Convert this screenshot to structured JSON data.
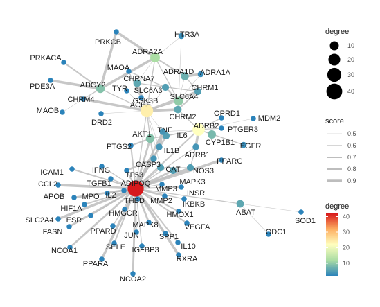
{
  "legends": {
    "degree_size": {
      "title": "degree",
      "breaks": [
        {
          "label": "10",
          "value": 10
        },
        {
          "label": "20",
          "value": 20
        },
        {
          "label": "30",
          "value": 30
        },
        {
          "label": "40",
          "value": 40
        }
      ]
    },
    "score": {
      "title": "score",
      "breaks": [
        {
          "label": "0.5",
          "value": 0.5
        },
        {
          "label": "0.6",
          "value": 0.6
        },
        {
          "label": "0.7",
          "value": 0.7
        },
        {
          "label": "0.8",
          "value": 0.8
        },
        {
          "label": "0.9",
          "value": 0.9
        }
      ]
    },
    "degree_color": {
      "title": "degree",
      "ticks": [
        {
          "label": "40",
          "value": 40
        },
        {
          "label": "30",
          "value": 30
        },
        {
          "label": "20",
          "value": 20
        },
        {
          "label": "10",
          "value": 10
        }
      ],
      "range": [
        2,
        42
      ],
      "colors": [
        "#d7191c",
        "#fdae61",
        "#ffffbf",
        "#abdda4",
        "#2b83ba"
      ]
    }
  },
  "nodes": [
    {
      "id": "ADIPOQ",
      "degree": 42
    },
    {
      "id": "ACHE",
      "degree": 24
    },
    {
      "id": "ADRB2",
      "degree": 22
    },
    {
      "id": "ADRA2A",
      "degree": 12
    },
    {
      "id": "ADCY2",
      "degree": 9
    },
    {
      "id": "SLC6A4",
      "degree": 10
    },
    {
      "id": "AKT1",
      "degree": 9
    },
    {
      "id": "CYP1B1",
      "degree": 8
    },
    {
      "id": "ADRA1D",
      "degree": 7
    },
    {
      "id": "ABAT",
      "degree": 6
    },
    {
      "id": "CHRNA7",
      "degree": 6
    },
    {
      "id": "CHRM2",
      "degree": 6
    },
    {
      "id": "CHRM1",
      "degree": 5
    },
    {
      "id": "SLC6A3",
      "degree": 5
    },
    {
      "id": "CAT",
      "degree": 5
    },
    {
      "id": "MAPK3",
      "degree": 5
    },
    {
      "id": "IL6",
      "degree": 5
    },
    {
      "id": "NOS3",
      "degree": 5
    },
    {
      "id": "TNF",
      "degree": 4
    },
    {
      "id": "IL1B",
      "degree": 4
    },
    {
      "id": "CASP3",
      "degree": 4
    },
    {
      "id": "ADRB1",
      "degree": 4
    },
    {
      "id": "EGFR",
      "degree": 3
    },
    {
      "id": "HTR3A",
      "degree": 3
    },
    {
      "id": "ADRA1A",
      "degree": 3
    },
    {
      "id": "PRKCB",
      "degree": 2
    },
    {
      "id": "MAOA",
      "degree": 2
    },
    {
      "id": "PRKACA",
      "degree": 2
    },
    {
      "id": "PDE3A",
      "degree": 2
    },
    {
      "id": "TYR",
      "degree": 2
    },
    {
      "id": "GSK3B",
      "degree": 2
    },
    {
      "id": "CHRM4",
      "degree": 2
    },
    {
      "id": "MAOB",
      "degree": 2
    },
    {
      "id": "DRD2",
      "degree": 2
    },
    {
      "id": "OPRD1",
      "degree": 2
    },
    {
      "id": "MDM2",
      "degree": 2
    },
    {
      "id": "PTGER3",
      "degree": 2
    },
    {
      "id": "PTGS2",
      "degree": 2
    },
    {
      "id": "PPARG",
      "degree": 2
    },
    {
      "id": "IFNG",
      "degree": 2
    },
    {
      "id": "ICAM1",
      "degree": 2
    },
    {
      "id": "TGFB1",
      "degree": 2
    },
    {
      "id": "TP53",
      "degree": 2
    },
    {
      "id": "CCL2",
      "degree": 2
    },
    {
      "id": "IL2",
      "degree": 2
    },
    {
      "id": "MPO",
      "degree": 2
    },
    {
      "id": "APOB",
      "degree": 2
    },
    {
      "id": "THBD",
      "degree": 2
    },
    {
      "id": "MMP3",
      "degree": 2
    },
    {
      "id": "MMP2",
      "degree": 2
    },
    {
      "id": "INSR",
      "degree": 2
    },
    {
      "id": "IKBKB",
      "degree": 2
    },
    {
      "id": "HIF1A",
      "degree": 2
    },
    {
      "id": "HMGCR",
      "degree": 2
    },
    {
      "id": "HMOX1",
      "degree": 2
    },
    {
      "id": "ESR1",
      "degree": 2
    },
    {
      "id": "SLC2A4",
      "degree": 2
    },
    {
      "id": "FASN",
      "degree": 2
    },
    {
      "id": "PPARD",
      "degree": 2
    },
    {
      "id": "MAPK8",
      "degree": 2
    },
    {
      "id": "VEGFA",
      "degree": 2
    },
    {
      "id": "JUN",
      "degree": 2
    },
    {
      "id": "SPP1",
      "degree": 2
    },
    {
      "id": "NCOA1",
      "degree": 2
    },
    {
      "id": "SELE",
      "degree": 2
    },
    {
      "id": "IGFBP3",
      "degree": 2
    },
    {
      "id": "IL10",
      "degree": 2
    },
    {
      "id": "PPARA",
      "degree": 2
    },
    {
      "id": "RXRA",
      "degree": 2
    },
    {
      "id": "NCOA2",
      "degree": 2
    },
    {
      "id": "SOD1",
      "degree": 2
    },
    {
      "id": "ODC1",
      "degree": 2
    }
  ],
  "edges": [
    {
      "source": "PRKCB",
      "target": "ADRA2A",
      "score": 0.9
    },
    {
      "source": "PRKCB",
      "target": "ADCY2",
      "score": 0.9
    },
    {
      "source": "HTR3A",
      "target": "SLC6A4",
      "score": 0.5
    },
    {
      "source": "ADRA2A",
      "target": "HTR3A",
      "score": 0.5
    },
    {
      "source": "PRKACA",
      "target": "ADCY2",
      "score": 0.7
    },
    {
      "source": "PDE3A",
      "target": "ADCY2",
      "score": 0.9
    },
    {
      "source": "ADCY2",
      "target": "ADRA2A",
      "score": 0.9
    },
    {
      "source": "ADCY2",
      "target": "ACHE",
      "score": 0.6
    },
    {
      "source": "ADCY2",
      "target": "CHRM4",
      "score": 0.6
    },
    {
      "source": "MAOB",
      "target": "CHRM4",
      "score": 0.5
    },
    {
      "source": "ADRA2A",
      "target": "ADRA1D",
      "score": 0.7
    },
    {
      "source": "ADRA2A",
      "target": "CHRNA7",
      "score": 0.5
    },
    {
      "source": "ADRA2A",
      "target": "ACHE",
      "score": 0.6
    },
    {
      "source": "ADRA2A",
      "target": "MAOA",
      "score": 0.5
    },
    {
      "source": "ADRA2A",
      "target": "SLC6A4",
      "score": 0.6
    },
    {
      "source": "ADRA1D",
      "target": "ADRA1A",
      "score": 0.9
    },
    {
      "source": "ADRA1D",
      "target": "CHRM1",
      "score": 0.6
    },
    {
      "source": "ADRA1D",
      "target": "SLC6A4",
      "score": 0.5
    },
    {
      "source": "ADRA1A",
      "target": "SLC6A4",
      "score": 0.5
    },
    {
      "source": "MAOA",
      "target": "SLC6A3",
      "score": 0.6
    },
    {
      "source": "MAOA",
      "target": "ACHE",
      "score": 0.6
    },
    {
      "source": "TYR",
      "target": "ACHE",
      "score": 0.5
    },
    {
      "source": "GSK3B",
      "target": "ACHE",
      "score": 0.5
    },
    {
      "source": "CHRNA7",
      "target": "ACHE",
      "score": 0.9
    },
    {
      "source": "CHRNA7",
      "target": "CHRM1",
      "score": 0.6
    },
    {
      "source": "SLC6A3",
      "target": "SLC6A4",
      "score": 0.7
    },
    {
      "source": "SLC6A3",
      "target": "ACHE",
      "score": 0.5
    },
    {
      "source": "SLC6A4",
      "target": "ACHE",
      "score": 0.6
    },
    {
      "source": "CHRM1",
      "target": "ACHE",
      "score": 0.9
    },
    {
      "source": "CHRM1",
      "target": "CHRM2",
      "score": 0.7
    },
    {
      "source": "CHRM4",
      "target": "ACHE",
      "score": 0.9
    },
    {
      "source": "DRD2",
      "target": "ACHE",
      "score": 0.5
    },
    {
      "source": "ACHE",
      "target": "CHRM2",
      "score": 0.9
    },
    {
      "source": "ACHE",
      "target": "AKT1",
      "score": 0.6
    },
    {
      "source": "ACHE",
      "target": "TNF",
      "score": 0.5
    },
    {
      "source": "ACHE",
      "target": "ADIPOQ",
      "score": 0.6
    },
    {
      "source": "ACHE",
      "target": "CAT",
      "score": 0.5
    },
    {
      "source": "ACHE",
      "target": "IL1B",
      "score": 0.5
    },
    {
      "source": "CHRM2",
      "target": "ADRB2",
      "score": 0.6
    },
    {
      "source": "ADRB2",
      "target": "OPRD1",
      "score": 0.6
    },
    {
      "source": "ADRB2",
      "target": "PTGER3",
      "score": 0.6
    },
    {
      "source": "ADRB2",
      "target": "MDM2",
      "score": 0.5
    },
    {
      "source": "ADRB2",
      "target": "CYP1B1",
      "score": 0.6
    },
    {
      "source": "ADRB2",
      "target": "ADRB1",
      "score": 0.9
    },
    {
      "source": "ADRB2",
      "target": "IL6",
      "score": 0.6
    },
    {
      "source": "ADRB2",
      "target": "TNF",
      "score": 0.5
    },
    {
      "source": "ADRB2",
      "target": "AKT1",
      "score": 0.6
    },
    {
      "source": "ADRB2",
      "target": "EGFR",
      "score": 0.6
    },
    {
      "source": "ADRB2",
      "target": "ADIPOQ",
      "score": 0.7
    },
    {
      "source": "CYP1B1",
      "target": "EGFR",
      "score": 0.5
    },
    {
      "source": "ADRB1",
      "target": "NOS3",
      "score": 0.6
    },
    {
      "source": "ADRB1",
      "target": "ADIPOQ",
      "score": 0.6
    },
    {
      "source": "AKT1",
      "target": "PTGS2",
      "score": 0.7
    },
    {
      "source": "AKT1",
      "target": "ADIPOQ",
      "score": 0.8
    },
    {
      "source": "AKT1",
      "target": "CASP3",
      "score": 0.7
    },
    {
      "source": "TNF",
      "target": "IL6",
      "score": 0.9
    },
    {
      "source": "TNF",
      "target": "IL1B",
      "score": 0.9
    },
    {
      "source": "TNF",
      "target": "ADIPOQ",
      "score": 0.8
    },
    {
      "source": "IL6",
      "target": "ADIPOQ",
      "score": 0.8
    },
    {
      "source": "IL1B",
      "target": "ADIPOQ",
      "score": 0.7
    },
    {
      "source": "CASP3",
      "target": "ADIPOQ",
      "score": 0.7
    },
    {
      "source": "CASP3",
      "target": "TP53",
      "score": 0.8
    },
    {
      "source": "CAT",
      "target": "ADIPOQ",
      "score": 0.6
    },
    {
      "source": "CAT",
      "target": "NOS3",
      "score": 0.6
    },
    {
      "source": "NOS3",
      "target": "ADIPOQ",
      "score": 0.8
    },
    {
      "source": "PPARG",
      "target": "ADIPOQ",
      "score": 0.9
    },
    {
      "source": "MAPK3",
      "target": "ADIPOQ",
      "score": 0.8
    },
    {
      "source": "INSR",
      "target": "ADIPOQ",
      "score": 0.7
    },
    {
      "source": "ABAT",
      "target": "ADIPOQ",
      "score": 0.6
    },
    {
      "source": "ABAT",
      "target": "SOD1",
      "score": 0.5
    },
    {
      "source": "ABAT",
      "target": "ODC1",
      "score": 0.5
    },
    {
      "source": "PTGS2",
      "target": "ADIPOQ",
      "score": 0.7
    },
    {
      "source": "IFNG",
      "target": "ADIPOQ",
      "score": 0.6
    },
    {
      "source": "ICAM1",
      "target": "ADIPOQ",
      "score": 0.7
    },
    {
      "source": "TGFB1",
      "target": "ADIPOQ",
      "score": 0.6
    },
    {
      "source": "TP53",
      "target": "ADIPOQ",
      "score": 0.7
    },
    {
      "source": "CCL2",
      "target": "ADIPOQ",
      "score": 0.9
    },
    {
      "source": "IL2",
      "target": "ADIPOQ",
      "score": 0.6
    },
    {
      "source": "MPO",
      "target": "ADIPOQ",
      "score": 0.7
    },
    {
      "source": "APOB",
      "target": "ADIPOQ",
      "score": 0.8
    },
    {
      "source": "THBD",
      "target": "ADIPOQ",
      "score": 0.6
    },
    {
      "source": "MMP3",
      "target": "ADIPOQ",
      "score": 0.6
    },
    {
      "source": "MMP2",
      "target": "ADIPOQ",
      "score": 0.7
    },
    {
      "source": "IKBKB",
      "target": "ADIPOQ",
      "score": 0.6
    },
    {
      "source": "HIF1A",
      "target": "ADIPOQ",
      "score": 0.7
    },
    {
      "source": "HMGCR",
      "target": "ADIPOQ",
      "score": 0.6
    },
    {
      "source": "HMOX1",
      "target": "ADIPOQ",
      "score": 0.7
    },
    {
      "source": "ESR1",
      "target": "ADIPOQ",
      "score": 0.6
    },
    {
      "source": "SLC2A4",
      "target": "ADIPOQ",
      "score": 0.9
    },
    {
      "source": "FASN",
      "target": "ADIPOQ",
      "score": 0.8
    },
    {
      "source": "PPARD",
      "target": "ADIPOQ",
      "score": 0.6
    },
    {
      "source": "MAPK8",
      "target": "ADIPOQ",
      "score": 0.8
    },
    {
      "source": "VEGFA",
      "target": "ADIPOQ",
      "score": 0.7
    },
    {
      "source": "JUN",
      "target": "ADIPOQ",
      "score": 0.6
    },
    {
      "source": "SPP1",
      "target": "ADIPOQ",
      "score": 0.6
    },
    {
      "source": "NCOA1",
      "target": "ADIPOQ",
      "score": 0.8
    },
    {
      "source": "SELE",
      "target": "ADIPOQ",
      "score": 0.7
    },
    {
      "source": "IGFBP3",
      "target": "ADIPOQ",
      "score": 0.6
    },
    {
      "source": "IL10",
      "target": "ADIPOQ",
      "score": 0.7
    },
    {
      "source": "PPARA",
      "target": "ADIPOQ",
      "score": 0.9
    },
    {
      "source": "RXRA",
      "target": "ADIPOQ",
      "score": 0.9
    },
    {
      "source": "NCOA2",
      "target": "ADIPOQ",
      "score": 0.8
    }
  ]
}
